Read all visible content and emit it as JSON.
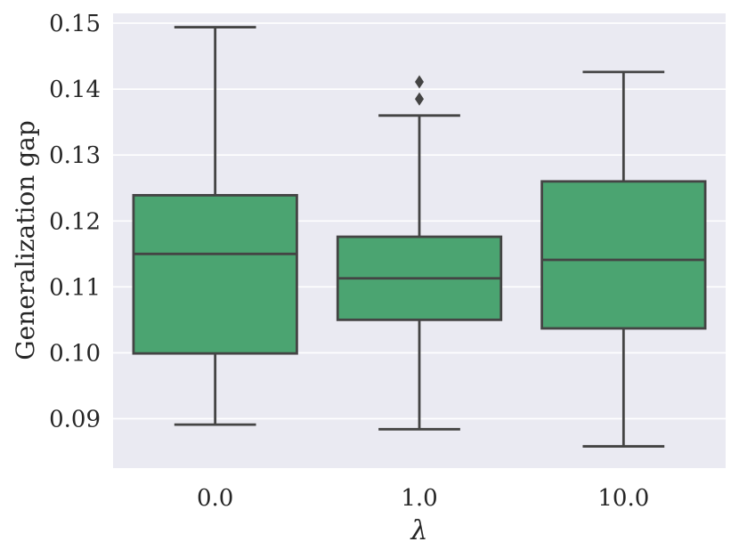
{
  "chart_data": {
    "type": "box",
    "xlabel": "λ",
    "ylabel": "Generalization gap",
    "categories": [
      "0.0",
      "1.0",
      "10.0"
    ],
    "ylim": [
      0.0825,
      0.1515
    ],
    "yticks": [
      "0.09",
      "0.10",
      "0.11",
      "0.12",
      "0.13",
      "0.14",
      "0.15"
    ],
    "ytick_values": [
      0.09,
      0.1,
      0.11,
      0.12,
      0.13,
      0.14,
      0.15
    ],
    "grid": true,
    "colors": {
      "background": "#eaeaf2",
      "grid": "#ffffff",
      "box_fill": "#4ba471",
      "line": "#444444"
    },
    "boxes": [
      {
        "category": "0.0",
        "whisker_low": 0.0891,
        "q1": 0.0999,
        "median": 0.115,
        "q3": 0.1239,
        "whisker_high": 0.1494,
        "outliers": []
      },
      {
        "category": "1.0",
        "whisker_low": 0.0884,
        "q1": 0.105,
        "median": 0.1113,
        "q3": 0.1176,
        "whisker_high": 0.136,
        "outliers": [
          0.1385,
          0.1411
        ]
      },
      {
        "category": "10.0",
        "whisker_low": 0.0858,
        "q1": 0.1037,
        "median": 0.1141,
        "q3": 0.126,
        "whisker_high": 0.1426,
        "outliers": []
      }
    ]
  }
}
